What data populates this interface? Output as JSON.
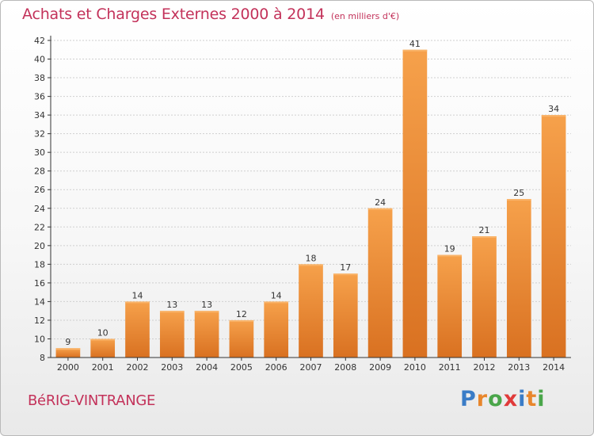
{
  "header": {
    "title": "Achats et Charges Externes 2000 à 2014",
    "unit": "(en milliers d'€)"
  },
  "footer": {
    "town": "BéRIG-VINTRANGE",
    "logo": [
      "P",
      "r",
      "o",
      "x",
      "i",
      "t",
      "i"
    ],
    "logo_colors": [
      "#3a7cc7",
      "#e8862c",
      "#4aa64a",
      "#e03a3a",
      "#3a7cc7",
      "#e8862c",
      "#4aa64a"
    ]
  },
  "colors": {
    "bar_light": "#f6a14b",
    "bar_dark": "#d97121",
    "grid": "#cfcfcf",
    "axis": "#333333"
  },
  "chart_data": {
    "type": "bar",
    "title": "Achats et Charges Externes 2000 à 2014",
    "subtitle": "(en milliers d'€)",
    "categories": [
      "2000",
      "2001",
      "2002",
      "2003",
      "2004",
      "2005",
      "2006",
      "2007",
      "2008",
      "2009",
      "2010",
      "2011",
      "2012",
      "2013",
      "2014"
    ],
    "values": [
      9,
      10,
      14,
      13,
      13,
      12,
      14,
      18,
      17,
      24,
      41,
      19,
      21,
      25,
      34
    ],
    "ylim": [
      8,
      42
    ],
    "yticks": [
      8,
      10,
      12,
      14,
      16,
      18,
      20,
      22,
      24,
      26,
      28,
      30,
      32,
      34,
      36,
      38,
      40,
      42
    ],
    "grid": true,
    "legend": "none"
  }
}
